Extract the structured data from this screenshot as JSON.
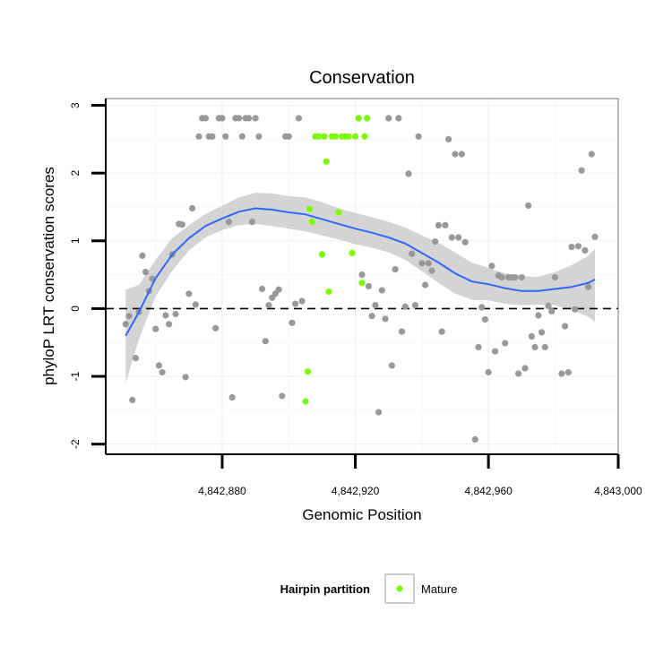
{
  "chart_data": {
    "type": "scatter",
    "title": "Conservation",
    "xlabel": "Genomic Position",
    "ylabel": "phyloP LRT conservation scores",
    "xlim": [
      4842845,
      4842999
    ],
    "ylim": [
      -2.15,
      3.1
    ],
    "x_ticks": [
      {
        "value": 4842880,
        "label": "4,842,880"
      },
      {
        "value": 4842920,
        "label": "4,842,920"
      },
      {
        "value": 4842960,
        "label": "4,842,960"
      },
      {
        "value": 4843000,
        "label": "4,843,000"
      }
    ],
    "y_ticks": [
      {
        "value": -2,
        "label": "-2"
      },
      {
        "value": -1,
        "label": "-1"
      },
      {
        "value": 0,
        "label": "0"
      },
      {
        "value": 1,
        "label": "1"
      },
      {
        "value": 2,
        "label": "2"
      },
      {
        "value": 3,
        "label": "3"
      }
    ],
    "grid": true,
    "reference_line": {
      "y": 0,
      "style": "dashed"
    },
    "legend": {
      "title": "Hairpin partition",
      "position": "bottom",
      "entries": [
        {
          "label": "Mature",
          "color": "#7cfc00"
        }
      ]
    },
    "series": [
      {
        "group": "other",
        "color": "#999999",
        "points": [
          [
            4842851,
            -0.23
          ],
          [
            4842852,
            -0.11
          ],
          [
            4842853,
            -1.35
          ],
          [
            4842854,
            -0.73
          ],
          [
            4842855,
            -0.05
          ],
          [
            4842856,
            0.78
          ],
          [
            4842857,
            0.54
          ],
          [
            4842858,
            0.26
          ],
          [
            4842859,
            0.44
          ],
          [
            4842860,
            -0.3
          ],
          [
            4842861,
            -0.84
          ],
          [
            4842862,
            -0.94
          ],
          [
            4842863,
            -0.1
          ],
          [
            4842864,
            -0.23
          ],
          [
            4842865,
            0.8
          ],
          [
            4842866,
            -0.08
          ],
          [
            4842867,
            1.25
          ],
          [
            4842868,
            1.24
          ],
          [
            4842869,
            -1.01
          ],
          [
            4842870,
            0.22
          ],
          [
            4842871,
            1.48
          ],
          [
            4842872,
            0.06
          ],
          [
            4842873,
            2.54
          ],
          [
            4842874,
            2.81
          ],
          [
            4842875,
            2.81
          ],
          [
            4842876,
            2.54
          ],
          [
            4842877,
            2.54
          ],
          [
            4842878,
            -0.29
          ],
          [
            4842879,
            2.81
          ],
          [
            4842880,
            2.81
          ],
          [
            4842881,
            2.54
          ],
          [
            4842882,
            1.28
          ],
          [
            4842883,
            -1.31
          ],
          [
            4842884,
            2.81
          ],
          [
            4842885,
            2.81
          ],
          [
            4842886,
            2.54
          ],
          [
            4842887,
            2.81
          ],
          [
            4842888,
            2.81
          ],
          [
            4842889,
            1.28
          ],
          [
            4842890,
            2.81
          ],
          [
            4842891,
            2.54
          ],
          [
            4842892,
            0.29
          ],
          [
            4842893,
            -0.48
          ],
          [
            4842894,
            0.05
          ],
          [
            4842895,
            0.16
          ],
          [
            4842896,
            0.22
          ],
          [
            4842897,
            0.28
          ],
          [
            4842898,
            -1.29
          ],
          [
            4842899,
            2.54
          ],
          [
            4842900,
            2.54
          ],
          [
            4842901,
            -0.21
          ],
          [
            4842902,
            0.07
          ],
          [
            4842903,
            2.81
          ],
          [
            4842904,
            0.11
          ],
          [
            4842922,
            0.5
          ],
          [
            4842924,
            0.33
          ],
          [
            4842925,
            -0.11
          ],
          [
            4842926,
            0.05
          ],
          [
            4842927,
            -1.53
          ],
          [
            4842928,
            0.27
          ],
          [
            4842929,
            -0.15
          ],
          [
            4842930,
            2.81
          ],
          [
            4842931,
            -0.84
          ],
          [
            4842932,
            0.58
          ],
          [
            4842933,
            2.81
          ],
          [
            4842934,
            -0.34
          ],
          [
            4842935,
            0.03
          ],
          [
            4842936,
            1.99
          ],
          [
            4842937,
            0.81
          ],
          [
            4842938,
            0.05
          ],
          [
            4842939,
            2.54
          ],
          [
            4842940,
            0.67
          ],
          [
            4842941,
            0.35
          ],
          [
            4842942,
            0.67
          ],
          [
            4842943,
            0.56
          ],
          [
            4842944,
            0.99
          ],
          [
            4842945,
            1.23
          ],
          [
            4842946,
            -0.34
          ],
          [
            4842947,
            1.23
          ],
          [
            4842948,
            2.5
          ],
          [
            4842949,
            1.05
          ],
          [
            4842950,
            2.28
          ],
          [
            4842951,
            1.05
          ],
          [
            4842952,
            2.28
          ],
          [
            4842953,
            0.98
          ],
          [
            4842956,
            -1.93
          ],
          [
            4842957,
            -0.57
          ],
          [
            4842958,
            0.02
          ],
          [
            4842959,
            -0.16
          ],
          [
            4842960,
            -0.94
          ],
          [
            4842961,
            0.63
          ],
          [
            4842962,
            -0.63
          ],
          [
            4842963,
            0.49
          ],
          [
            4842964,
            0.46
          ],
          [
            4842965,
            -0.51
          ],
          [
            4842966,
            0.46
          ],
          [
            4842967,
            0.46
          ],
          [
            4842968,
            0.46
          ],
          [
            4842969,
            -0.96
          ],
          [
            4842970,
            0.46
          ],
          [
            4842971,
            -0.88
          ],
          [
            4842972,
            1.52
          ],
          [
            4842973,
            -0.41
          ],
          [
            4842974,
            -0.57
          ],
          [
            4842975,
            -0.1
          ],
          [
            4842976,
            -0.35
          ],
          [
            4842977,
            -0.57
          ],
          [
            4842978,
            0.04
          ],
          [
            4842979,
            -0.04
          ],
          [
            4842980,
            0.46
          ],
          [
            4842982,
            -0.96
          ],
          [
            4842983,
            -0.26
          ],
          [
            4842984,
            -0.94
          ],
          [
            4842985,
            0.91
          ],
          [
            4842986,
            -0.01
          ],
          [
            4842987,
            0.92
          ],
          [
            4842988,
            2.04
          ],
          [
            4842989,
            0.86
          ],
          [
            4842990,
            0.32
          ],
          [
            4842991,
            2.28
          ],
          [
            4842992,
            1.06
          ]
        ]
      },
      {
        "group": "Mature",
        "name": "Mature",
        "color": "#7cfc00",
        "points": [
          [
            4842905,
            -1.37
          ],
          [
            4842905.7,
            -0.93
          ],
          [
            4842906.3,
            1.47
          ],
          [
            4842907,
            1.28
          ],
          [
            4842908,
            2.54
          ],
          [
            4842909,
            2.54
          ],
          [
            4842910,
            0.8
          ],
          [
            4842910.7,
            2.54
          ],
          [
            4842911.3,
            2.17
          ],
          [
            4842912,
            0.25
          ],
          [
            4842913,
            2.54
          ],
          [
            4842914,
            2.54
          ],
          [
            4842915,
            1.42
          ],
          [
            4842916,
            2.54
          ],
          [
            4842917,
            2.54
          ],
          [
            4842918,
            2.54
          ],
          [
            4842919,
            0.82
          ],
          [
            4842920,
            2.54
          ],
          [
            4842921,
            2.81
          ],
          [
            4842922,
            0.38
          ],
          [
            4842922.8,
            2.54
          ],
          [
            4842923.5,
            2.81
          ]
        ]
      }
    ],
    "smooth": {
      "color": "#3366ff",
      "ribbon_color": "#cccccc",
      "curve": [
        [
          4842851,
          -0.4
        ],
        [
          4842855,
          -0.05
        ],
        [
          4842860,
          0.45
        ],
        [
          4842865,
          0.8
        ],
        [
          4842870,
          1.04
        ],
        [
          4842875,
          1.22
        ],
        [
          4842880,
          1.33
        ],
        [
          4842885,
          1.43
        ],
        [
          4842890,
          1.48
        ],
        [
          4842895,
          1.46
        ],
        [
          4842900,
          1.42
        ],
        [
          4842905,
          1.39
        ],
        [
          4842910,
          1.32
        ],
        [
          4842915,
          1.25
        ],
        [
          4842920,
          1.18
        ],
        [
          4842925,
          1.12
        ],
        [
          4842930,
          1.05
        ],
        [
          4842935,
          0.96
        ],
        [
          4842940,
          0.82
        ],
        [
          4842945,
          0.68
        ],
        [
          4842950,
          0.52
        ],
        [
          4842955,
          0.4
        ],
        [
          4842960,
          0.36
        ],
        [
          4842965,
          0.3
        ],
        [
          4842970,
          0.26
        ],
        [
          4842975,
          0.26
        ],
        [
          4842980,
          0.29
        ],
        [
          4842985,
          0.32
        ],
        [
          4842990,
          0.38
        ],
        [
          4842992,
          0.43
        ]
      ],
      "lower": [
        [
          4842851,
          -1.1
        ],
        [
          4842855,
          -0.45
        ],
        [
          4842860,
          0.18
        ],
        [
          4842865,
          0.56
        ],
        [
          4842870,
          0.86
        ],
        [
          4842875,
          1.05
        ],
        [
          4842880,
          1.16
        ],
        [
          4842885,
          1.23
        ],
        [
          4842890,
          1.25
        ],
        [
          4842895,
          1.22
        ],
        [
          4842900,
          1.18
        ],
        [
          4842905,
          1.14
        ],
        [
          4842910,
          1.08
        ],
        [
          4842915,
          1.02
        ],
        [
          4842920,
          0.95
        ],
        [
          4842925,
          0.9
        ],
        [
          4842930,
          0.83
        ],
        [
          4842935,
          0.72
        ],
        [
          4842940,
          0.55
        ],
        [
          4842945,
          0.38
        ],
        [
          4842950,
          0.22
        ],
        [
          4842955,
          0.13
        ],
        [
          4842960,
          0.12
        ],
        [
          4842965,
          0.07
        ],
        [
          4842970,
          0.05
        ],
        [
          4842975,
          0.06
        ],
        [
          4842980,
          0.05
        ],
        [
          4842985,
          -0.02
        ],
        [
          4842990,
          -0.12
        ],
        [
          4842992,
          -0.2
        ]
      ],
      "upper": [
        [
          4842851,
          0.28
        ],
        [
          4842855,
          0.35
        ],
        [
          4842860,
          0.72
        ],
        [
          4842865,
          1.04
        ],
        [
          4842870,
          1.23
        ],
        [
          4842875,
          1.4
        ],
        [
          4842880,
          1.52
        ],
        [
          4842885,
          1.64
        ],
        [
          4842890,
          1.71
        ],
        [
          4842895,
          1.7
        ],
        [
          4842900,
          1.66
        ],
        [
          4842905,
          1.64
        ],
        [
          4842910,
          1.57
        ],
        [
          4842915,
          1.48
        ],
        [
          4842920,
          1.41
        ],
        [
          4842925,
          1.35
        ],
        [
          4842930,
          1.28
        ],
        [
          4842935,
          1.2
        ],
        [
          4842940,
          1.08
        ],
        [
          4842945,
          0.97
        ],
        [
          4842950,
          0.83
        ],
        [
          4842955,
          0.68
        ],
        [
          4842960,
          0.6
        ],
        [
          4842965,
          0.52
        ],
        [
          4842970,
          0.48
        ],
        [
          4842975,
          0.47
        ],
        [
          4842980,
          0.54
        ],
        [
          4842985,
          0.64
        ],
        [
          4842990,
          0.78
        ],
        [
          4842992,
          0.88
        ]
      ]
    }
  }
}
